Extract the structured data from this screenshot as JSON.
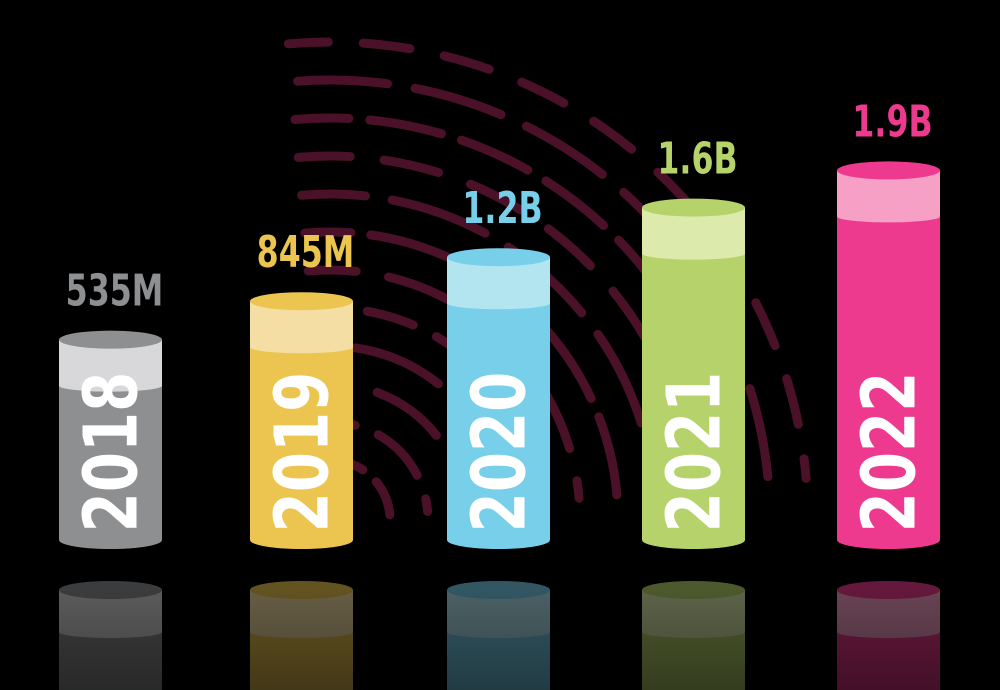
{
  "chart_data": {
    "type": "bar",
    "style": "3d-cylinder with reflection",
    "categories": [
      "2018",
      "2019",
      "2020",
      "2021",
      "2022"
    ],
    "values": [
      0.535,
      0.845,
      1.2,
      1.6,
      1.9
    ],
    "value_unit": "billions",
    "data_labels": [
      "535M",
      "845M",
      "1.2B",
      "1.6B",
      "1.9B"
    ],
    "colors": [
      "#8e8f91",
      "#ecc550",
      "#77cfe9",
      "#b6d36b",
      "#ee3a8e"
    ],
    "band_colors": [
      "#d8d8da",
      "#f5dea4",
      "#b3e5f1",
      "#dcebac",
      "#f7a0c6"
    ],
    "title": "",
    "xlabel": "",
    "ylabel": "",
    "grid": false,
    "legend": "none",
    "background": "#000000",
    "decoration_color": "#4a1129"
  }
}
